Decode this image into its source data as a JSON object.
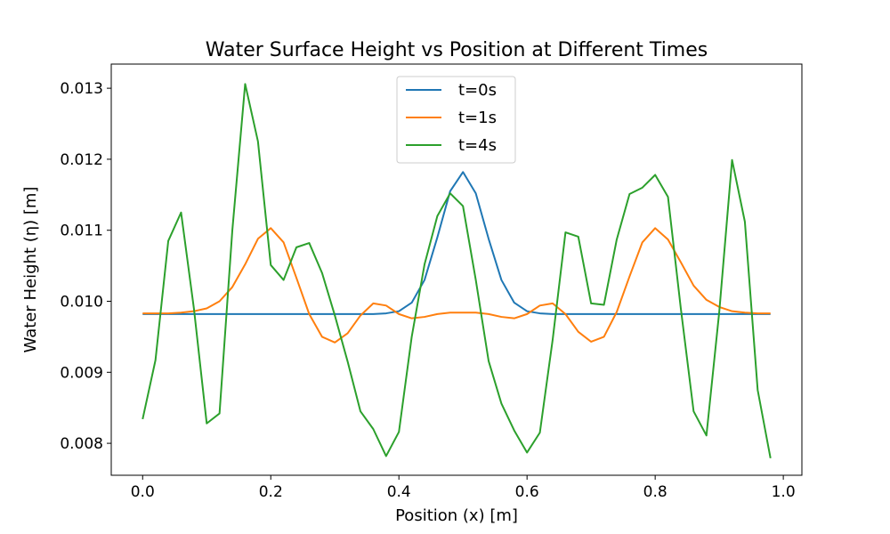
{
  "chart_data": {
    "type": "line",
    "title": "Water Surface Height vs Position at Different Times",
    "xlabel": "Position (x) [m]",
    "ylabel": "Water Height (η) [m]",
    "xlim": [
      -0.049,
      1.029
    ],
    "ylim": [
      0.00755,
      0.01334
    ],
    "xticks": [
      0.0,
      0.2,
      0.4,
      0.6,
      0.8,
      1.0
    ],
    "xtick_labels": [
      "0.0",
      "0.2",
      "0.4",
      "0.6",
      "0.8",
      "1.0"
    ],
    "yticks": [
      0.008,
      0.009,
      0.01,
      0.011,
      0.012,
      0.013
    ],
    "ytick_labels": [
      "0.008",
      "0.009",
      "0.010",
      "0.011",
      "0.012",
      "0.013"
    ],
    "grid": false,
    "legend_position": "upper center",
    "x": [
      0.0,
      0.02,
      0.04,
      0.06,
      0.08,
      0.1,
      0.12,
      0.14,
      0.16,
      0.18,
      0.2,
      0.22,
      0.24,
      0.26,
      0.28,
      0.3,
      0.32,
      0.34,
      0.36,
      0.38,
      0.4,
      0.42,
      0.44,
      0.46,
      0.48,
      0.5,
      0.52,
      0.54,
      0.56,
      0.58,
      0.6,
      0.62,
      0.64,
      0.66,
      0.68,
      0.7,
      0.72,
      0.74,
      0.76,
      0.78,
      0.8,
      0.82,
      0.84,
      0.86,
      0.88,
      0.9,
      0.92,
      0.94,
      0.96,
      0.98
    ],
    "series": [
      {
        "name": "t=0s",
        "color": "#1f77b4",
        "values": [
          0.00982,
          0.00982,
          0.00982,
          0.00982,
          0.00982,
          0.00982,
          0.00982,
          0.00982,
          0.00982,
          0.00982,
          0.00982,
          0.00982,
          0.00982,
          0.00982,
          0.00982,
          0.00982,
          0.00982,
          0.00982,
          0.00982,
          0.00983,
          0.00986,
          0.00998,
          0.0103,
          0.0109,
          0.01155,
          0.01182,
          0.01152,
          0.01088,
          0.0103,
          0.00998,
          0.00986,
          0.00983,
          0.00982,
          0.00982,
          0.00982,
          0.00982,
          0.00982,
          0.00982,
          0.00982,
          0.00982,
          0.00982,
          0.00982,
          0.00982,
          0.00982,
          0.00982,
          0.00982,
          0.00982,
          0.00982,
          0.00982,
          0.00982
        ]
      },
      {
        "name": "t=1s",
        "color": "#ff7f0e",
        "values": [
          0.00983,
          0.00983,
          0.00983,
          0.00984,
          0.00986,
          0.0099,
          0.01,
          0.0102,
          0.01052,
          0.01088,
          0.01103,
          0.01083,
          0.01033,
          0.00982,
          0.0095,
          0.00942,
          0.00955,
          0.0098,
          0.00997,
          0.00994,
          0.00982,
          0.00976,
          0.00978,
          0.00982,
          0.00984,
          0.00984,
          0.00984,
          0.00982,
          0.00978,
          0.00976,
          0.00982,
          0.00994,
          0.00997,
          0.00982,
          0.00957,
          0.00943,
          0.0095,
          0.00985,
          0.01035,
          0.01083,
          0.01103,
          0.01087,
          0.01055,
          0.01022,
          0.01002,
          0.00992,
          0.00986,
          0.00984,
          0.00983,
          0.00983
        ]
      },
      {
        "name": "t=4s",
        "color": "#2ca02c",
        "values": [
          0.00834,
          0.00917,
          0.01085,
          0.01125,
          0.0099,
          0.00828,
          0.00842,
          0.011,
          0.01306,
          0.01225,
          0.01051,
          0.0103,
          0.01076,
          0.01082,
          0.0104,
          0.0098,
          0.00915,
          0.00845,
          0.0082,
          0.00782,
          0.00816,
          0.0095,
          0.01052,
          0.0112,
          0.01152,
          0.01134,
          0.0103,
          0.00916,
          0.00856,
          0.00818,
          0.00787,
          0.00815,
          0.00946,
          0.01097,
          0.01091,
          0.00997,
          0.00995,
          0.01087,
          0.01151,
          0.0116,
          0.01178,
          0.01147,
          0.0099,
          0.00845,
          0.00811,
          0.00985,
          0.01199,
          0.01112,
          0.00875,
          0.00779
        ]
      }
    ]
  }
}
